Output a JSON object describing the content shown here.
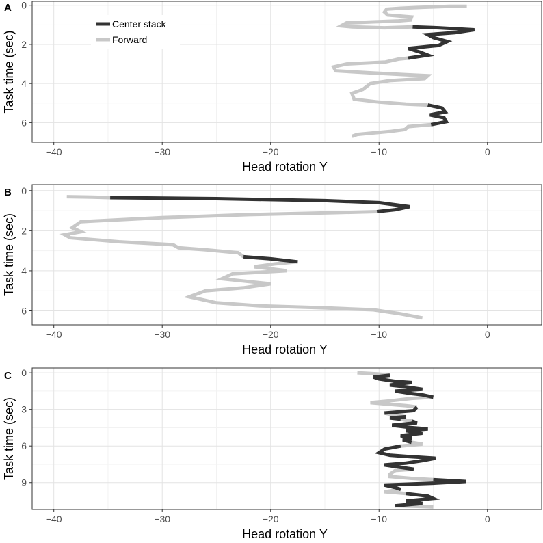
{
  "colors": {
    "center_stack": "#333333",
    "forward": "#c8c8c8",
    "panel_border": "#333333",
    "grid_major": "#e3e3e3",
    "grid_minor": "#f2f2f2"
  },
  "legend": {
    "items": [
      {
        "label": "Center stack",
        "color": "#333333"
      },
      {
        "label": "Forward",
        "color": "#c8c8c8"
      }
    ]
  },
  "chart_data": [
    {
      "type": "line",
      "panel": "A",
      "xlabel": "Head rotation Y",
      "ylabel": "Task time (sec)",
      "xlim": [
        -42,
        5
      ],
      "ylim": [
        7.0,
        -0.2
      ],
      "x_ticks": [
        -40,
        -30,
        -20,
        -10,
        0
      ],
      "y_ticks": [
        0,
        2,
        4,
        6
      ],
      "legend_position": "top-left",
      "series": [
        {
          "name": "Forward",
          "color": "#c8c8c8",
          "segments": [
            [
              [
                -1.9,
                0.05
              ],
              [
                -3.5,
                0.05
              ],
              [
                -6.0,
                0.1
              ],
              [
                -8.0,
                0.15
              ],
              [
                -9.3,
                0.2
              ],
              [
                -9.5,
                0.35
              ],
              [
                -9.2,
                0.5
              ],
              [
                -7.0,
                0.6
              ],
              [
                -7.1,
                0.75
              ],
              [
                -8.2,
                0.8
              ],
              [
                -10.5,
                0.85
              ],
              [
                -13.0,
                0.9
              ],
              [
                -13.5,
                1.05
              ],
              [
                -12.5,
                1.1
              ],
              [
                -9.5,
                1.15
              ],
              [
                -6.9,
                1.1
              ]
            ],
            [
              [
                -7.3,
                2.7
              ],
              [
                -8.2,
                2.75
              ],
              [
                -9.4,
                2.9
              ],
              [
                -13.0,
                3.0
              ],
              [
                -14.2,
                3.15
              ],
              [
                -14.0,
                3.35
              ],
              [
                -11.0,
                3.45
              ],
              [
                -7.5,
                3.55
              ],
              [
                -5.5,
                3.6
              ],
              [
                -5.8,
                3.75
              ],
              [
                -9.0,
                3.85
              ],
              [
                -10.8,
                4.0
              ],
              [
                -11.5,
                4.3
              ],
              [
                -12.5,
                4.5
              ],
              [
                -12.3,
                4.8
              ],
              [
                -10.0,
                4.95
              ],
              [
                -7.5,
                5.05
              ],
              [
                -5.5,
                5.1
              ]
            ],
            [
              [
                -5.2,
                6.1
              ],
              [
                -7.3,
                6.2
              ],
              [
                -7.6,
                6.35
              ],
              [
                -9.0,
                6.45
              ],
              [
                -11.0,
                6.55
              ],
              [
                -12.0,
                6.6
              ],
              [
                -12.5,
                6.7
              ]
            ]
          ]
        },
        {
          "name": "Center stack",
          "color": "#333333",
          "segments": [
            [
              [
                -6.9,
                1.1
              ],
              [
                -4.5,
                1.15
              ],
              [
                -1.2,
                1.25
              ],
              [
                -3.0,
                1.4
              ],
              [
                -5.5,
                1.5
              ],
              [
                -5.0,
                1.65
              ],
              [
                -3.7,
                1.85
              ],
              [
                -4.5,
                2.05
              ],
              [
                -7.3,
                2.2
              ],
              [
                -6.2,
                2.4
              ],
              [
                -5.5,
                2.55
              ],
              [
                -7.3,
                2.7
              ]
            ],
            [
              [
                -5.5,
                5.1
              ],
              [
                -4.2,
                5.25
              ],
              [
                -3.9,
                5.45
              ],
              [
                -5.3,
                5.6
              ],
              [
                -4.0,
                5.75
              ],
              [
                -3.8,
                5.95
              ],
              [
                -5.2,
                6.1
              ]
            ]
          ]
        }
      ]
    },
    {
      "type": "line",
      "panel": "B",
      "xlabel": "Head rotation Y",
      "ylabel": "Task time (sec)",
      "xlim": [
        -42,
        5
      ],
      "ylim": [
        6.7,
        -0.3
      ],
      "x_ticks": [
        -40,
        -30,
        -20,
        -10,
        0
      ],
      "y_ticks": [
        0,
        2,
        4,
        6
      ],
      "series": [
        {
          "name": "Forward",
          "color": "#c8c8c8",
          "segments": [
            [
              [
                -38.8,
                0.3
              ],
              [
                -36.5,
                0.32
              ],
              [
                -34.8,
                0.35
              ]
            ],
            [
              [
                -10.2,
                1.05
              ],
              [
                -14.0,
                1.1
              ],
              [
                -22.0,
                1.2
              ],
              [
                -30.0,
                1.35
              ],
              [
                -37.5,
                1.55
              ],
              [
                -38.3,
                1.85
              ],
              [
                -37.5,
                2.05
              ],
              [
                -39.0,
                2.2
              ],
              [
                -38.5,
                2.35
              ],
              [
                -34.0,
                2.55
              ],
              [
                -29.0,
                2.7
              ],
              [
                -28.5,
                2.85
              ],
              [
                -26.0,
                2.95
              ],
              [
                -23.0,
                3.1
              ],
              [
                -22.5,
                3.3
              ]
            ],
            [
              [
                -17.5,
                3.55
              ],
              [
                -19.5,
                3.65
              ],
              [
                -21.5,
                3.8
              ],
              [
                -18.5,
                4.0
              ],
              [
                -23.5,
                4.15
              ],
              [
                -24.5,
                4.4
              ],
              [
                -20.0,
                4.65
              ],
              [
                -22.5,
                4.85
              ],
              [
                -26.0,
                5.0
              ],
              [
                -27.5,
                5.3
              ],
              [
                -25.0,
                5.6
              ],
              [
                -21.0,
                5.75
              ],
              [
                -15.0,
                5.85
              ],
              [
                -10.5,
                5.95
              ],
              [
                -8.0,
                6.15
              ],
              [
                -6.0,
                6.35
              ]
            ]
          ]
        },
        {
          "name": "Center stack",
          "color": "#333333",
          "segments": [
            [
              [
                -34.8,
                0.35
              ],
              [
                -25.0,
                0.4
              ],
              [
                -15.0,
                0.5
              ],
              [
                -10.0,
                0.6
              ],
              [
                -7.2,
                0.8
              ],
              [
                -8.5,
                0.95
              ],
              [
                -10.2,
                1.05
              ]
            ],
            [
              [
                -22.5,
                3.3
              ],
              [
                -20.0,
                3.4
              ],
              [
                -17.5,
                3.55
              ]
            ]
          ]
        }
      ]
    },
    {
      "type": "line",
      "panel": "C",
      "xlabel": "Head rotation Y",
      "ylabel": "Task time (sec)",
      "xlim": [
        -42,
        5
      ],
      "ylim": [
        11.2,
        -0.4
      ],
      "x_ticks": [
        -40,
        -30,
        -20,
        -10,
        0
      ],
      "y_ticks": [
        0,
        3,
        6,
        9
      ],
      "series": [
        {
          "name": "Forward",
          "color": "#c8c8c8",
          "segments": [
            [
              [
                -12.0,
                0.0
              ],
              [
                -10.0,
                0.1
              ],
              [
                -9.0,
                0.2
              ]
            ],
            [
              [
                -5.0,
                2.0
              ],
              [
                -7.0,
                2.1
              ],
              [
                -9.0,
                2.3
              ],
              [
                -10.8,
                2.45
              ],
              [
                -9.5,
                2.55
              ],
              [
                -7.5,
                2.7
              ],
              [
                -6.5,
                2.8
              ]
            ],
            [
              [
                -9.5,
                3.3
              ],
              [
                -8.5,
                3.5
              ],
              [
                -7.5,
                3.6
              ]
            ],
            [
              [
                -8.0,
                3.8
              ],
              [
                -7.5,
                3.9
              ],
              [
                -7.0,
                3.95
              ]
            ],
            [
              [
                -7.0,
                5.7
              ],
              [
                -6.0,
                5.85
              ],
              [
                -8.0,
                6.0
              ]
            ],
            [
              [
                -6.8,
                7.9
              ],
              [
                -8.5,
                8.0
              ],
              [
                -9.0,
                8.3
              ],
              [
                -9.0,
                8.5
              ],
              [
                -7.0,
                8.65
              ],
              [
                -5.0,
                8.75
              ]
            ],
            [
              [
                -8.0,
                9.55
              ],
              [
                -9.5,
                9.75
              ],
              [
                -7.5,
                9.9
              ]
            ],
            [
              [
                -8.5,
                10.9
              ],
              [
                -6.5,
                10.95
              ],
              [
                -5.0,
                11.0
              ]
            ]
          ]
        },
        {
          "name": "Center stack",
          "color": "#333333",
          "segments": [
            [
              [
                -9.0,
                0.2
              ],
              [
                -10.5,
                0.35
              ],
              [
                -10.0,
                0.5
              ],
              [
                -8.5,
                0.7
              ],
              [
                -7.0,
                0.8
              ],
              [
                -9.0,
                1.0
              ],
              [
                -7.5,
                1.15
              ],
              [
                -6.0,
                1.35
              ],
              [
                -8.5,
                1.5
              ],
              [
                -7.0,
                1.7
              ],
              [
                -6.0,
                1.8
              ],
              [
                -5.0,
                2.0
              ]
            ],
            [
              [
                -6.5,
                2.8
              ],
              [
                -6.8,
                3.1
              ],
              [
                -9.5,
                3.3
              ]
            ],
            [
              [
                -7.5,
                3.6
              ],
              [
                -9.0,
                3.7
              ],
              [
                -8.0,
                3.8
              ]
            ],
            [
              [
                -7.0,
                3.95
              ],
              [
                -6.5,
                4.1
              ],
              [
                -8.8,
                4.3
              ],
              [
                -7.0,
                4.5
              ],
              [
                -5.5,
                4.6
              ],
              [
                -7.5,
                4.75
              ],
              [
                -6.0,
                4.95
              ],
              [
                -8.0,
                5.15
              ],
              [
                -7.0,
                5.35
              ],
              [
                -7.8,
                5.5
              ],
              [
                -7.0,
                5.7
              ]
            ],
            [
              [
                -8.0,
                6.0
              ],
              [
                -9.5,
                6.25
              ],
              [
                -10.0,
                6.55
              ],
              [
                -9.0,
                6.75
              ],
              [
                -7.5,
                6.85
              ],
              [
                -4.8,
                7.0
              ],
              [
                -6.0,
                7.2
              ],
              [
                -7.5,
                7.4
              ],
              [
                -9.5,
                7.55
              ],
              [
                -8.0,
                7.75
              ],
              [
                -6.8,
                7.9
              ]
            ],
            [
              [
                -5.0,
                8.75
              ],
              [
                -2.0,
                8.9
              ],
              [
                -5.0,
                9.05
              ],
              [
                -9.5,
                9.2
              ],
              [
                -8.5,
                9.4
              ],
              [
                -8.0,
                9.55
              ]
            ],
            [
              [
                -7.5,
                9.9
              ],
              [
                -5.5,
                10.1
              ],
              [
                -5.0,
                10.3
              ],
              [
                -7.5,
                10.5
              ],
              [
                -6.0,
                10.7
              ],
              [
                -8.5,
                10.9
              ]
            ]
          ]
        }
      ]
    }
  ]
}
